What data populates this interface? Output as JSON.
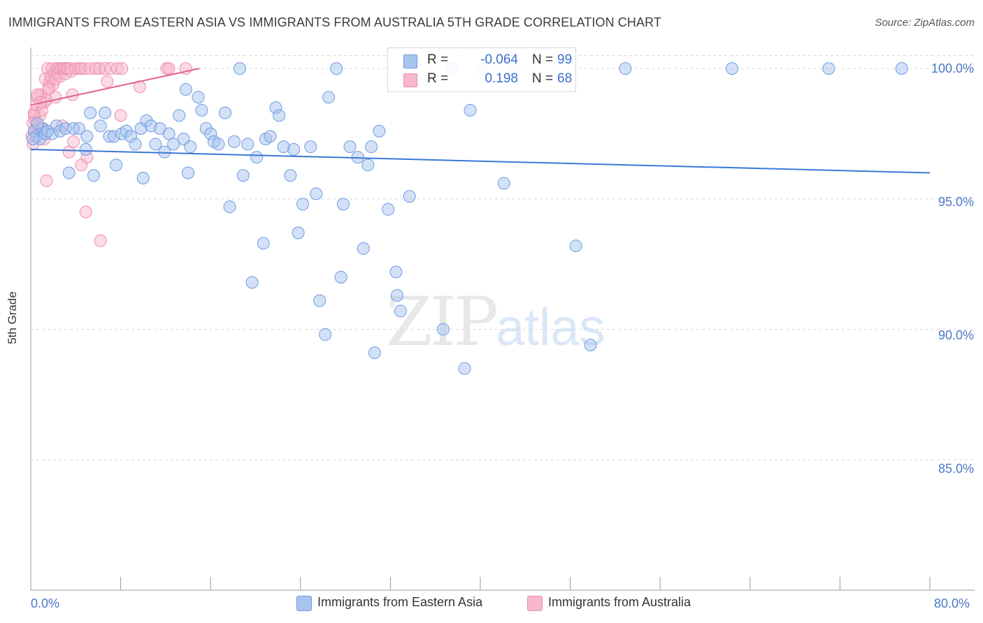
{
  "title": "IMMIGRANTS FROM EASTERN ASIA VS IMMIGRANTS FROM AUSTRALIA 5TH GRADE CORRELATION CHART",
  "source": "Source: ZipAtlas.com",
  "watermark": {
    "zip": "ZIP",
    "atlas": "atlas"
  },
  "legend": {
    "r_label": "R =",
    "n_label": "N =",
    "series": [
      {
        "r": "-0.064",
        "n": "99",
        "color": "#a7c4ef"
      },
      {
        "r": "0.198",
        "n": "68",
        "color": "#f7b8cb"
      }
    ]
  },
  "bottom_legend": [
    "Immigrants from Eastern Asia",
    "Immigrants from Australia"
  ],
  "colors": {
    "blue_fill": "#a7c4ef",
    "blue_stroke": "#6f9be0",
    "blue_line": "#3a78d4",
    "pink_fill": "#f7b8cb",
    "pink_stroke": "#ee8fae",
    "pink_line": "#e0638e",
    "grid": "#d6d6d6",
    "tick_text": "#4a78c8"
  },
  "chart_data": {
    "type": "scatter",
    "title": "IMMIGRANTS FROM EASTERN ASIA VS IMMIGRANTS FROM AUSTRALIA 5TH GRADE CORRELATION CHART",
    "xlabel": "",
    "ylabel": "5th Grade",
    "xlim": [
      0,
      80
    ],
    "ylim": [
      80,
      100.7
    ],
    "x_tick_labels": [
      "0.0%",
      "80.0%"
    ],
    "y_ticks": [
      85,
      90,
      95,
      100
    ],
    "y_tick_labels": [
      "85.0%",
      "90.0%",
      "95.0%",
      "100.0%"
    ],
    "grid": true,
    "series": [
      {
        "name": "Immigrants from Eastern Asia",
        "color": "#a7c4ef",
        "r": -0.064,
        "n": 99,
        "trend": {
          "x": [
            0,
            80
          ],
          "y": [
            96.9,
            96.0
          ]
        },
        "points": [
          [
            0.3,
            97.6
          ],
          [
            0.5,
            97.4
          ],
          [
            0.8,
            97.3
          ],
          [
            1.0,
            97.7
          ],
          [
            1.3,
            97.5
          ],
          [
            1.5,
            97.6
          ],
          [
            1.9,
            97.5
          ],
          [
            2.3,
            97.8
          ],
          [
            2.6,
            97.6
          ],
          [
            3.1,
            97.7
          ],
          [
            3.4,
            96.0
          ],
          [
            3.8,
            97.7
          ],
          [
            4.3,
            97.7
          ],
          [
            4.9,
            96.9
          ],
          [
            5.3,
            98.3
          ],
          [
            5.6,
            95.9
          ],
          [
            6.2,
            97.8
          ],
          [
            6.6,
            98.3
          ],
          [
            7.0,
            97.4
          ],
          [
            7.4,
            97.4
          ],
          [
            7.6,
            96.3
          ],
          [
            8.1,
            97.5
          ],
          [
            8.5,
            97.6
          ],
          [
            8.9,
            97.4
          ],
          [
            9.3,
            97.1
          ],
          [
            9.8,
            97.7
          ],
          [
            10.0,
            95.8
          ],
          [
            10.3,
            98.0
          ],
          [
            10.7,
            97.8
          ],
          [
            11.1,
            97.1
          ],
          [
            11.5,
            97.7
          ],
          [
            11.9,
            96.8
          ],
          [
            12.3,
            97.5
          ],
          [
            12.7,
            97.1
          ],
          [
            13.2,
            98.2
          ],
          [
            13.6,
            97.3
          ],
          [
            14.0,
            96.0
          ],
          [
            14.2,
            97.0
          ],
          [
            14.9,
            98.9
          ],
          [
            15.2,
            98.4
          ],
          [
            15.6,
            97.7
          ],
          [
            16.0,
            97.5
          ],
          [
            16.3,
            97.2
          ],
          [
            16.7,
            97.1
          ],
          [
            17.3,
            98.3
          ],
          [
            17.7,
            94.7
          ],
          [
            18.1,
            97.2
          ],
          [
            18.6,
            100.0
          ],
          [
            18.9,
            95.9
          ],
          [
            19.3,
            97.1
          ],
          [
            19.7,
            91.8
          ],
          [
            20.1,
            96.6
          ],
          [
            20.7,
            93.3
          ],
          [
            20.9,
            97.3
          ],
          [
            21.3,
            97.4
          ],
          [
            21.8,
            98.5
          ],
          [
            22.1,
            98.2
          ],
          [
            22.5,
            97.0
          ],
          [
            23.1,
            95.9
          ],
          [
            23.4,
            96.9
          ],
          [
            23.8,
            93.7
          ],
          [
            24.2,
            94.8
          ],
          [
            24.9,
            97.0
          ],
          [
            25.4,
            95.2
          ],
          [
            25.7,
            91.1
          ],
          [
            26.2,
            89.8
          ],
          [
            26.5,
            98.9
          ],
          [
            27.6,
            92.0
          ],
          [
            27.2,
            100.0
          ],
          [
            27.8,
            94.8
          ],
          [
            28.4,
            97.0
          ],
          [
            29.1,
            96.6
          ],
          [
            29.6,
            93.1
          ],
          [
            30.0,
            96.3
          ],
          [
            30.3,
            97.0
          ],
          [
            30.6,
            89.1
          ],
          [
            31.0,
            97.6
          ],
          [
            31.8,
            94.6
          ],
          [
            32.5,
            92.2
          ],
          [
            32.6,
            91.3
          ],
          [
            32.9,
            90.7
          ],
          [
            33.7,
            95.1
          ],
          [
            36.7,
            90.0
          ],
          [
            37.5,
            100.0
          ],
          [
            38.6,
            88.5
          ],
          [
            39.1,
            98.4
          ],
          [
            40.2,
            100.0
          ],
          [
            42.1,
            95.6
          ],
          [
            43.0,
            100.0
          ],
          [
            48.5,
            93.2
          ],
          [
            49.8,
            89.4
          ],
          [
            52.9,
            100.0
          ],
          [
            62.4,
            100.0
          ],
          [
            71.0,
            100.0
          ],
          [
            77.5,
            100.0
          ],
          [
            5.0,
            97.4
          ],
          [
            13.8,
            99.2
          ],
          [
            0.2,
            97.3
          ],
          [
            0.6,
            97.9
          ]
        ]
      },
      {
        "name": "Immigrants from Australia",
        "color": "#f7b8cb",
        "r": 0.198,
        "n": 68,
        "trend": {
          "x": [
            0,
            15
          ],
          "y": [
            98.6,
            100.0
          ]
        },
        "points": [
          [
            0.1,
            97.4
          ],
          [
            0.2,
            97.1
          ],
          [
            0.3,
            98.3
          ],
          [
            0.4,
            98.0
          ],
          [
            0.5,
            98.6
          ],
          [
            0.6,
            98.9
          ],
          [
            0.7,
            97.7
          ],
          [
            0.8,
            98.2
          ],
          [
            0.9,
            99.0
          ],
          [
            1.0,
            98.4
          ],
          [
            1.1,
            97.7
          ],
          [
            1.2,
            98.7
          ],
          [
            1.3,
            99.6
          ],
          [
            1.4,
            98.8
          ],
          [
            1.5,
            100.0
          ],
          [
            1.6,
            99.3
          ],
          [
            1.7,
            99.5
          ],
          [
            1.8,
            99.7
          ],
          [
            1.9,
            100.0
          ],
          [
            2.0,
            99.4
          ],
          [
            2.1,
            99.8
          ],
          [
            2.2,
            99.6
          ],
          [
            2.3,
            100.0
          ],
          [
            2.4,
            99.8
          ],
          [
            2.5,
            100.0
          ],
          [
            2.6,
            99.7
          ],
          [
            2.7,
            100.0
          ],
          [
            2.8,
            97.8
          ],
          [
            2.9,
            100.0
          ],
          [
            3.0,
            100.0
          ],
          [
            3.1,
            99.8
          ],
          [
            3.2,
            100.0
          ],
          [
            3.3,
            100.0
          ],
          [
            3.5,
            100.0
          ],
          [
            3.6,
            99.9
          ],
          [
            3.7,
            99.0
          ],
          [
            4.0,
            100.0
          ],
          [
            4.3,
            100.0
          ],
          [
            4.5,
            100.0
          ],
          [
            4.8,
            100.0
          ],
          [
            5.0,
            96.6
          ],
          [
            5.3,
            100.0
          ],
          [
            5.8,
            100.0
          ],
          [
            6.1,
            100.0
          ],
          [
            6.6,
            100.0
          ],
          [
            7.1,
            100.0
          ],
          [
            7.7,
            100.0
          ],
          [
            8.0,
            98.2
          ],
          [
            9.7,
            99.3
          ],
          [
            12.1,
            100.0
          ],
          [
            12.3,
            100.0
          ],
          [
            13.8,
            100.0
          ],
          [
            1.4,
            95.7
          ],
          [
            3.4,
            96.8
          ],
          [
            4.5,
            96.3
          ],
          [
            4.9,
            94.5
          ],
          [
            6.2,
            93.4
          ],
          [
            3.8,
            97.2
          ],
          [
            0.6,
            99.0
          ],
          [
            0.3,
            98.2
          ],
          [
            0.2,
            97.9
          ],
          [
            0.9,
            98.7
          ],
          [
            1.2,
            97.3
          ],
          [
            1.6,
            99.2
          ],
          [
            2.2,
            98.9
          ],
          [
            0.4,
            97.6
          ],
          [
            6.8,
            99.5
          ],
          [
            8.1,
            100.0
          ]
        ]
      }
    ]
  }
}
